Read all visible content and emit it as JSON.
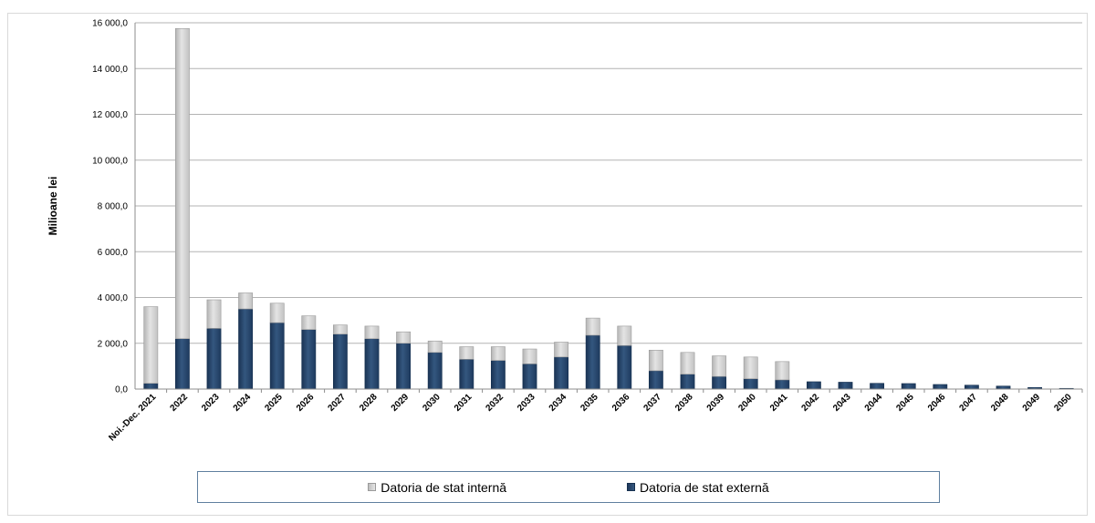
{
  "chart_data": {
    "type": "bar",
    "stacked": true,
    "ylabel": "Milioane lei",
    "xlabel": "",
    "ylim": [
      0,
      16000
    ],
    "yticks": [
      0,
      2000,
      4000,
      6000,
      8000,
      10000,
      12000,
      14000,
      16000
    ],
    "ytick_labels": [
      "0,0",
      "2 000,0",
      "4 000,0",
      "6 000,0",
      "8 000,0",
      "10 000,0",
      "12 000,0",
      "14 000,0",
      "16 000,0"
    ],
    "grid": true,
    "legend_position": "bottom",
    "categories": [
      "Noi.-Dec. 2021",
      "2022",
      "2023",
      "2024",
      "2025",
      "2026",
      "2027",
      "2028",
      "2029",
      "2030",
      "2031",
      "2032",
      "2033",
      "2034",
      "2035",
      "2036",
      "2037",
      "2038",
      "2039",
      "2040",
      "2041",
      "2042",
      "2043",
      "2044",
      "2045",
      "2046",
      "2047",
      "2048",
      "2049",
      "2050"
    ],
    "series": [
      {
        "name": "Datoria de stat externă",
        "color": "#243f63",
        "values": [
          250,
          2200,
          2650,
          3500,
          2900,
          2600,
          2400,
          2200,
          2000,
          1600,
          1300,
          1250,
          1100,
          1400,
          2350,
          1900,
          800,
          650,
          550,
          450,
          400,
          320,
          300,
          250,
          240,
          200,
          170,
          130,
          70,
          30
        ]
      },
      {
        "name": "Datoria de stat internă",
        "color": "#cfcfcf",
        "values": [
          3350,
          13550,
          1250,
          700,
          850,
          600,
          400,
          550,
          500,
          500,
          550,
          600,
          650,
          650,
          750,
          850,
          900,
          950,
          900,
          950,
          800,
          0,
          0,
          0,
          0,
          0,
          0,
          0,
          0,
          0
        ]
      }
    ]
  },
  "legend": {
    "internal_label": "Datoria de stat internă",
    "external_label": "Datoria de stat externă"
  }
}
